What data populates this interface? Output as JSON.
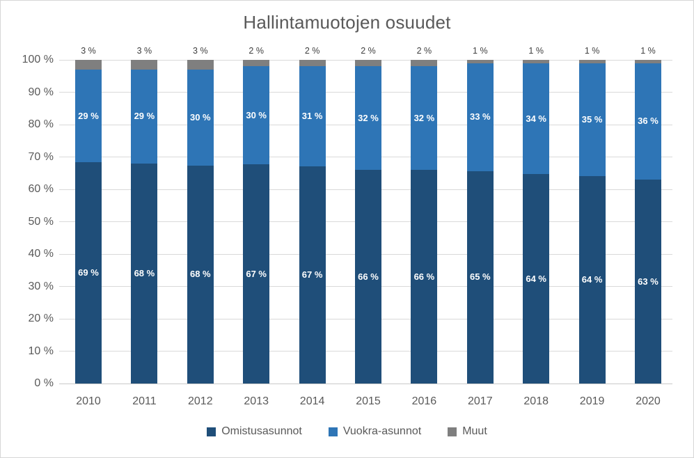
{
  "title": "Hallintamuotojen osuudet",
  "chart_data": {
    "type": "bar",
    "stacked": true,
    "title": "Hallintamuotojen osuudet",
    "categories": [
      "2010",
      "2011",
      "2012",
      "2013",
      "2014",
      "2015",
      "2016",
      "2017",
      "2018",
      "2019",
      "2020"
    ],
    "series": [
      {
        "name": "Omistusasunnot",
        "color": "#1F4E79",
        "label_color": "#ffffff",
        "labels_outside": false,
        "values": [
          69,
          68,
          68,
          67,
          67,
          66,
          66,
          65,
          64,
          64,
          63
        ]
      },
      {
        "name": "Vuokra-asunnot",
        "color": "#2E75B6",
        "label_color": "#ffffff",
        "labels_outside": false,
        "values": [
          29,
          29,
          30,
          30,
          31,
          32,
          32,
          33,
          34,
          35,
          36
        ]
      },
      {
        "name": "Muut",
        "color": "#7F7F7F",
        "label_color": "#404040",
        "labels_outside": true,
        "values": [
          3,
          3,
          3,
          2,
          2,
          2,
          2,
          1,
          1,
          1,
          1
        ]
      }
    ],
    "label_suffix": " %",
    "y_axis": {
      "ticks": [
        0,
        10,
        20,
        30,
        40,
        50,
        60,
        70,
        80,
        90,
        100
      ],
      "suffix": " %",
      "range": [
        0,
        100
      ]
    },
    "xlabel": "",
    "ylabel": "",
    "grid": true,
    "legend_position": "bottom",
    "colors": {
      "gridline": "#d9d9d9",
      "axis_line": "#c9c9c9",
      "text": "#595959"
    }
  }
}
